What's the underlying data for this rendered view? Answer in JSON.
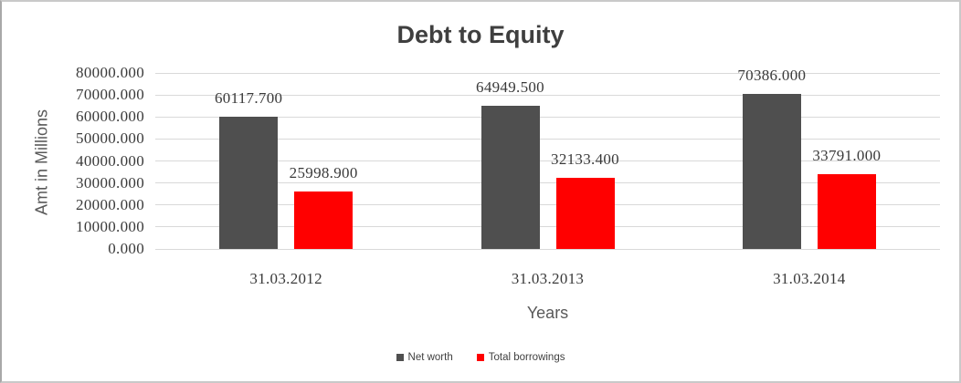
{
  "chart_data": {
    "type": "bar",
    "title": "Debt to Equity",
    "xlabel": "Years",
    "ylabel": "Amt in Millions",
    "categories": [
      "31.03.2012",
      "31.03.2013",
      "31.03.2014"
    ],
    "series": [
      {
        "name": "Net worth",
        "color": "#4f4f4f",
        "values": [
          60117.7,
          64949.5,
          70386.0
        ],
        "data_labels": [
          "60117.700",
          "64949.500",
          "70386.000"
        ]
      },
      {
        "name": "Total borrowings",
        "color": "#ff0000",
        "values": [
          25998.9,
          32133.4,
          33791.0
        ],
        "data_labels": [
          "25998.900",
          "32133.400",
          "33791.000"
        ]
      }
    ],
    "ylim": [
      0,
      80000
    ],
    "ytick_step": 10000,
    "ytick_labels": [
      "0.000",
      "10000.000",
      "20000.000",
      "30000.000",
      "40000.000",
      "50000.000",
      "60000.000",
      "70000.000",
      "80000.000"
    ],
    "grid": "horizontal",
    "legend_position": "bottom",
    "colors": {
      "gridline": "#d9d9d9",
      "tick_text": "#3a3a3a",
      "axis_title_text": "#595959",
      "title_text": "#3f3f3f",
      "background": "#ffffff",
      "border": "#c9c9c9"
    }
  }
}
